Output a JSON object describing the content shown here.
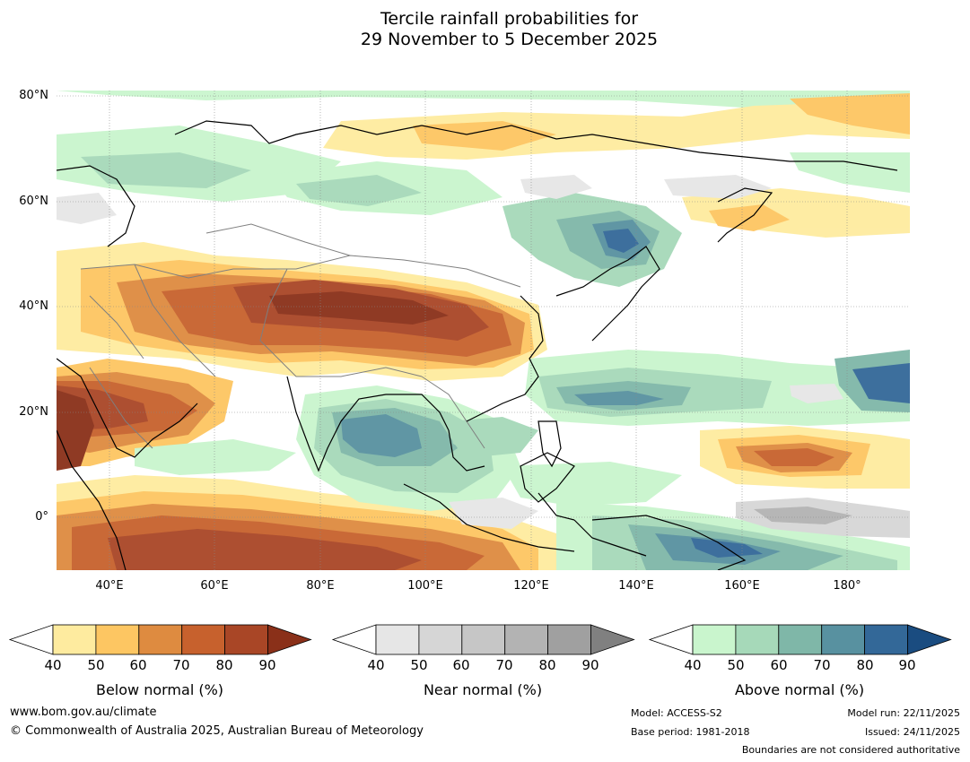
{
  "title": {
    "line1": "Tercile rainfall probabilities for",
    "line2": "29 November to 5 December 2025"
  },
  "map": {
    "lat_labels": [
      "80°N",
      "60°N",
      "40°N",
      "20°N",
      "0°"
    ],
    "lon_labels": [
      "40°E",
      "60°E",
      "80°E",
      "100°E",
      "120°E",
      "140°E",
      "160°E",
      "180°"
    ],
    "lon_range": [
      30,
      192
    ],
    "lat_range": [
      -10,
      81
    ],
    "colors": {
      "ocean": "#ffffff",
      "coast": "#000000",
      "borders": "#7f7f7f",
      "grid": "#888888"
    }
  },
  "colorbars": [
    {
      "label": "Below normal (%)",
      "ticks": [
        "40",
        "50",
        "60",
        "70",
        "80",
        "90"
      ],
      "colors": [
        "#ffffff",
        "#feeb9f",
        "#fdc662",
        "#de8b40",
        "#c7612d",
        "#a94626",
        "#8a3019"
      ]
    },
    {
      "label": "Near normal (%)",
      "ticks": [
        "40",
        "50",
        "60",
        "70",
        "80",
        "90"
      ],
      "colors": [
        "#ffffff",
        "#e6e6e6",
        "#d6d6d6",
        "#c6c6c6",
        "#b3b3b3",
        "#a0a0a0",
        "#808080"
      ]
    },
    {
      "label": "Above normal (%)",
      "ticks": [
        "40",
        "50",
        "60",
        "70",
        "80",
        "90"
      ],
      "colors": [
        "#ffffff",
        "#c9f5cd",
        "#a6d9b9",
        "#7fb7a8",
        "#5891a0",
        "#336898",
        "#1a4c80"
      ]
    }
  ],
  "footer": {
    "website": "www.bom.gov.au/climate",
    "copyright": "© Commonwealth of Australia 2025, Australian Bureau of Meteorology",
    "model": "Model: ACCESS-S2",
    "base_period": "Base period: 1981-2018",
    "model_run": "Model run: 22/11/2025",
    "issued": "Issued: 24/11/2025",
    "disclaimer": "Boundaries are not considered authoritative"
  }
}
